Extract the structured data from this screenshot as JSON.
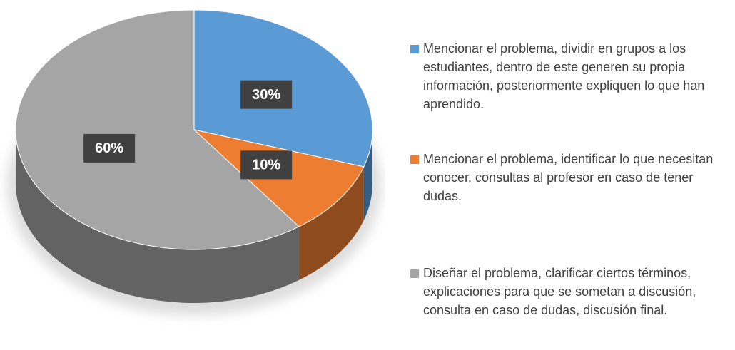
{
  "chart_data": {
    "type": "pie",
    "categories": [
      "Mencionar el problema, dividir en grupos a los estudiantes, dentro de este generen su propia información, posteriormente expliquen lo que han aprendido.",
      "Mencionar el problema, identificar lo que necesitan conocer, consultas al profesor en caso de tener dudas.",
      "Diseñar el problema, clarificar ciertos términos, explicaciones para que se sometan a discusión, consulta en caso de dudas, discusión final."
    ],
    "values": [
      30,
      10,
      60
    ],
    "value_labels": [
      "30%",
      "10%",
      "60%"
    ],
    "colors": [
      "#5b9bd5",
      "#ed7d31",
      "#a5a5a5"
    ],
    "legend": "right"
  }
}
